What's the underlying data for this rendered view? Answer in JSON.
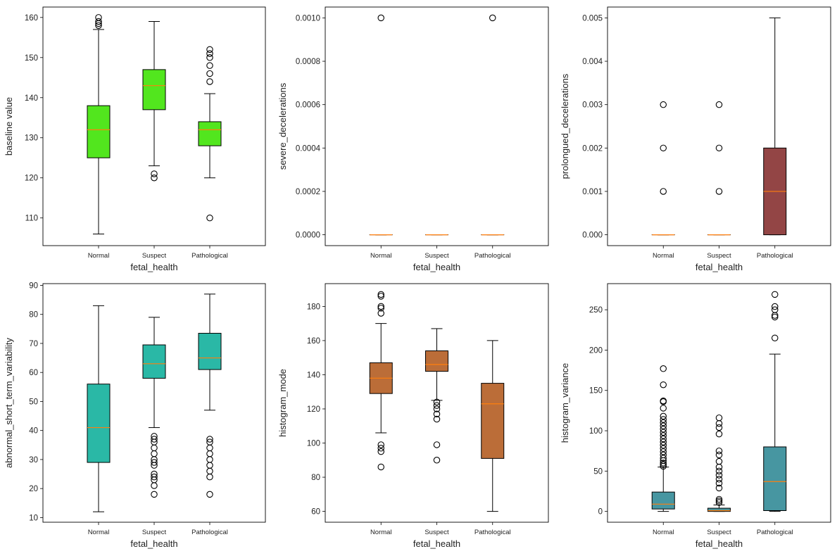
{
  "chart_data": [
    {
      "type": "box",
      "xlabel": "fetal_health",
      "ylabel": "baseline value",
      "categories": [
        "Normal",
        "Suspect",
        "Pathological"
      ],
      "ylim": [
        103.1,
        162.6
      ],
      "yticks": [
        110,
        120,
        130,
        140,
        150,
        160
      ],
      "yticklabels": [
        "110",
        "120",
        "130",
        "140",
        "150",
        "160"
      ],
      "box_color": "#52e61e",
      "boxes": [
        {
          "whislo": 106,
          "q1": 125,
          "med": 132,
          "q3": 138,
          "whishi": 157,
          "fliers": [
            158,
            158.5,
            159,
            160
          ]
        },
        {
          "whislo": 123,
          "q1": 137,
          "med": 143,
          "q3": 147,
          "whishi": 159,
          "fliers": [
            120,
            121
          ]
        },
        {
          "whislo": 120,
          "q1": 128,
          "med": 132,
          "q3": 134,
          "whishi": 141,
          "fliers": [
            110,
            144,
            146,
            148,
            150,
            151,
            152
          ]
        }
      ]
    },
    {
      "type": "box",
      "xlabel": "fetal_health",
      "ylabel": "severe_decelerations",
      "categories": [
        "Normal",
        "Suspect",
        "Pathological"
      ],
      "ylim": [
        -5e-05,
        0.00105
      ],
      "yticks": [
        0,
        0.0002,
        0.0004,
        0.0006,
        0.0008,
        0.001
      ],
      "yticklabels": [
        "0.0000",
        "0.0002",
        "0.0004",
        "0.0006",
        "0.0008",
        "0.0010"
      ],
      "box_color": "#f4a460",
      "boxes": [
        {
          "whislo": 0,
          "q1": 0,
          "med": 0,
          "q3": 0,
          "whishi": 0,
          "fliers": [
            0.001
          ]
        },
        {
          "whislo": 0,
          "q1": 0,
          "med": 0,
          "q3": 0,
          "whishi": 0,
          "fliers": []
        },
        {
          "whislo": 0,
          "q1": 0,
          "med": 0,
          "q3": 0,
          "whishi": 0,
          "fliers": [
            0.001
          ]
        }
      ]
    },
    {
      "type": "box",
      "xlabel": "fetal_health",
      "ylabel": "prolongued_decelerations",
      "categories": [
        "Normal",
        "Suspect",
        "Pathological"
      ],
      "ylim": [
        -0.00025,
        0.00525
      ],
      "yticks": [
        0,
        0.001,
        0.002,
        0.003,
        0.004,
        0.005
      ],
      "yticklabels": [
        "0.000",
        "0.001",
        "0.002",
        "0.003",
        "0.004",
        "0.005"
      ],
      "box_color": "#934545",
      "boxes": [
        {
          "whislo": 0,
          "q1": 0,
          "med": 0,
          "q3": 0,
          "whishi": 0,
          "fliers": [
            0.001,
            0.002,
            0.003
          ]
        },
        {
          "whislo": 0,
          "q1": 0,
          "med": 0,
          "q3": 0,
          "whishi": 0,
          "fliers": [
            0.001,
            0.002,
            0.003
          ]
        },
        {
          "whislo": 0,
          "q1": 0,
          "med": 0.001,
          "q3": 0.002,
          "whishi": 0.005,
          "fliers": []
        }
      ]
    },
    {
      "type": "box",
      "xlabel": "fetal_health",
      "ylabel": "abnormal_short_term_variability",
      "categories": [
        "Normal",
        "Suspect",
        "Pathological"
      ],
      "ylim": [
        8.4,
        90.6
      ],
      "yticks": [
        10,
        20,
        30,
        40,
        50,
        60,
        70,
        80,
        90
      ],
      "yticklabels": [
        "10",
        "20",
        "30",
        "40",
        "50",
        "60",
        "70",
        "80",
        "90"
      ],
      "box_color": "#2ab8a6",
      "boxes": [
        {
          "whislo": 12,
          "q1": 29,
          "med": 41,
          "q3": 56,
          "whishi": 83,
          "fliers": []
        },
        {
          "whislo": 41,
          "q1": 58,
          "med": 63,
          "q3": 69.5,
          "whishi": 79,
          "fliers": [
            18,
            21,
            23,
            24,
            25,
            28,
            29,
            30,
            32,
            34,
            36,
            37,
            38
          ]
        },
        {
          "whislo": 47,
          "q1": 61,
          "med": 65,
          "q3": 73.5,
          "whishi": 87,
          "fliers": [
            18,
            24,
            26,
            28,
            30,
            32,
            34,
            36,
            37
          ]
        }
      ]
    },
    {
      "type": "box",
      "xlabel": "fetal_health",
      "ylabel": "histogram_mode",
      "categories": [
        "Normal",
        "Suspect",
        "Pathological"
      ],
      "ylim": [
        53.65,
        193.35
      ],
      "yticks": [
        60,
        80,
        100,
        120,
        140,
        160,
        180
      ],
      "yticklabels": [
        "60",
        "80",
        "100",
        "120",
        "140",
        "160",
        "180"
      ],
      "box_color": "#bb6d38",
      "boxes": [
        {
          "whislo": 106,
          "q1": 129,
          "med": 138,
          "q3": 147,
          "whishi": 170,
          "fliers": [
            86,
            95,
            97,
            99,
            176,
            179,
            180,
            186,
            187
          ]
        },
        {
          "whislo": 125,
          "q1": 142,
          "med": 146,
          "q3": 154,
          "whishi": 167,
          "fliers": [
            90,
            99,
            114,
            117,
            120,
            122,
            124
          ]
        },
        {
          "whislo": 60,
          "q1": 91,
          "med": 123,
          "q3": 135,
          "whishi": 160,
          "fliers": []
        }
      ]
    },
    {
      "type": "box",
      "xlabel": "fetal_health",
      "ylabel": "histogram_variance",
      "categories": [
        "Normal",
        "Suspect",
        "Pathological"
      ],
      "ylim": [
        -13.4,
        282.4
      ],
      "yticks": [
        0,
        50,
        100,
        150,
        200,
        250
      ],
      "yticklabels": [
        "0",
        "50",
        "100",
        "150",
        "200",
        "250"
      ],
      "box_color": "#4796a1",
      "boxes": [
        {
          "whislo": 0,
          "q1": 3,
          "med": 9,
          "q3": 24,
          "whishi": 55,
          "fliers": [
            56,
            58,
            60,
            63,
            66,
            70,
            74,
            78,
            82,
            86,
            90,
            94,
            98,
            102,
            106,
            110,
            114,
            118,
            128,
            136,
            137,
            157,
            177
          ]
        },
        {
          "whislo": 0,
          "q1": 0,
          "med": 1,
          "q3": 4,
          "whishi": 8,
          "fliers": [
            11,
            13,
            15,
            29,
            35,
            40,
            45,
            50,
            55,
            62,
            70,
            75,
            96,
            104,
            109,
            116
          ]
        },
        {
          "whislo": 0,
          "q1": 1,
          "med": 37,
          "q3": 80,
          "whishi": 195,
          "fliers": [
            215,
            241,
            243,
            250,
            254,
            269
          ]
        }
      ]
    }
  ],
  "colors": {
    "median": "#ff7f0e",
    "outline": "#000000"
  }
}
